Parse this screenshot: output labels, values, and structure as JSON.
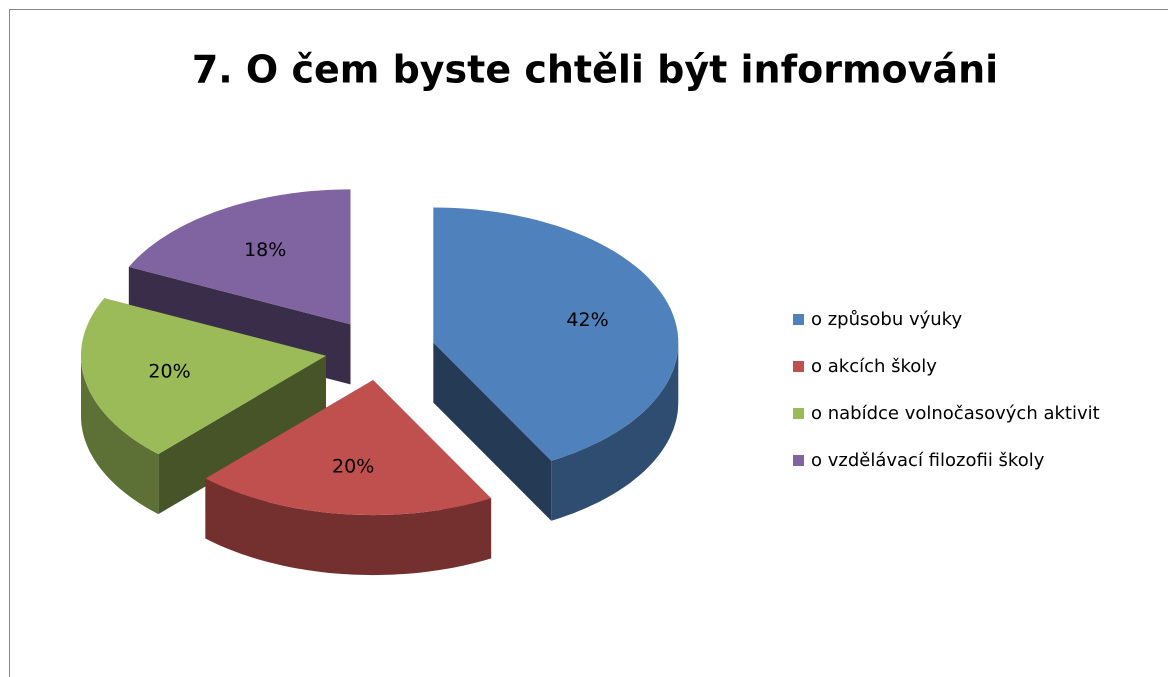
{
  "chart_data": {
    "type": "pie",
    "title": "7. O čem byste chtěli být informováni",
    "categories": [
      "o způsobu výuky",
      "o akcích školy",
      "o nabídce volnočasových aktivit",
      "o vzdělávací filozofii školy"
    ],
    "values": [
      42,
      20,
      20,
      18
    ],
    "value_labels": [
      "42%",
      "20%",
      "20%",
      "18%"
    ],
    "colors": [
      "#4f81bd",
      "#c0504d",
      "#9bbb59",
      "#8064a2"
    ],
    "legend": "right"
  }
}
